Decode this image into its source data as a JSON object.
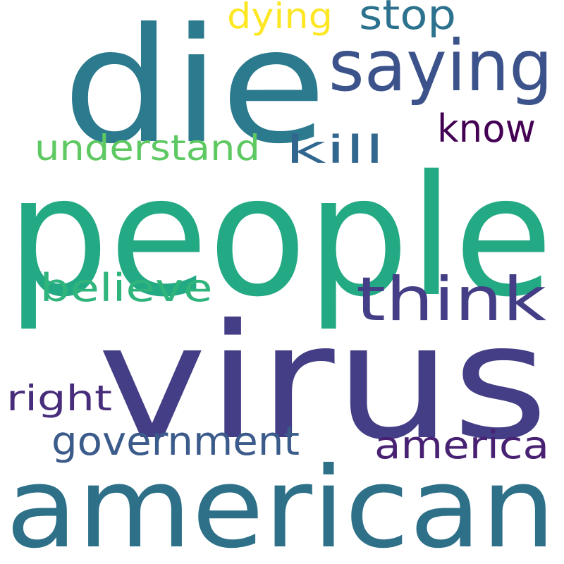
{
  "words": [
    {
      "text": "people",
      "color": "#23a983"
    },
    {
      "text": "virus",
      "color": "#433e85"
    },
    {
      "text": "die",
      "color": "#2b7a8e"
    },
    {
      "text": "american",
      "color": "#2d7088"
    },
    {
      "text": "saying",
      "color": "#3b528b"
    },
    {
      "text": "think",
      "color": "#433e85"
    },
    {
      "text": "government",
      "color": "#3b5b8b"
    },
    {
      "text": "america",
      "color": "#482173"
    },
    {
      "text": "believe",
      "color": "#2fb47c"
    },
    {
      "text": "understand",
      "color": "#5ec962"
    },
    {
      "text": "kill",
      "color": "#31678e"
    },
    {
      "text": "know",
      "color": "#440154"
    },
    {
      "text": "right",
      "color": "#472d7b"
    },
    {
      "text": "dying",
      "color": "#fde725"
    },
    {
      "text": "stop",
      "color": "#2c728e"
    }
  ]
}
